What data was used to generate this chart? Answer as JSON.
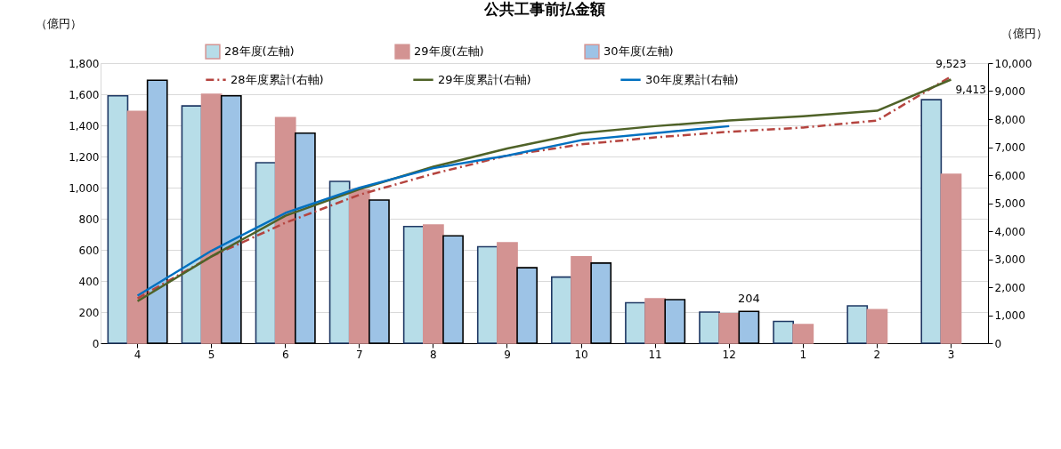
{
  "chart_data": {
    "type": "bar",
    "title": "公共工事前払金額",
    "ylabel": "（億円）",
    "y2label": "（億円）",
    "categories": [
      "4",
      "5",
      "6",
      "7",
      "8",
      "9",
      "10",
      "11",
      "12",
      "1",
      "2",
      "3"
    ],
    "series": [
      {
        "name": "28年度(左軸)",
        "color": "#b7dde8",
        "values": [
          1590,
          1525,
          1160,
          1040,
          750,
          620,
          425,
          260,
          200,
          140,
          240,
          1565
        ]
      },
      {
        "name": "29年度(左軸)",
        "color": "#d39392",
        "values": [
          1490,
          1600,
          1450,
          985,
          760,
          645,
          555,
          285,
          190,
          120,
          215,
          1085
        ]
      },
      {
        "name": "30年度(左軸)",
        "color": "#9dc3e6",
        "values": [
          1690,
          1590,
          1350,
          920,
          690,
          485,
          515,
          280,
          204,
          null,
          null,
          null
        ],
        "value_labels": [
          null,
          null,
          null,
          null,
          null,
          null,
          null,
          null,
          "204",
          null,
          null,
          null
        ]
      },
      {
        "name": "28年度累計(右軸)",
        "type": "line",
        "axis": "y2",
        "line_style": "dashed",
        "color": "#b5443f",
        "values": [
          1600,
          3100,
          4300,
          5300,
          6050,
          6700,
          7100,
          7350,
          7550,
          7700,
          7950,
          9523
        ],
        "value_labels": [
          null,
          null,
          null,
          null,
          null,
          null,
          null,
          null,
          null,
          null,
          null,
          "9,523"
        ]
      },
      {
        "name": "29年度累計(右軸)",
        "type": "line",
        "axis": "y2",
        "line_style": "solid",
        "color": "#4f6228",
        "values": [
          1500,
          3100,
          4550,
          5500,
          6300,
          6950,
          7500,
          7750,
          7950,
          8100,
          8300,
          9413
        ],
        "value_labels": [
          null,
          null,
          null,
          null,
          null,
          null,
          null,
          null,
          null,
          null,
          null,
          "9,413"
        ]
      },
      {
        "name": "30年度累計(右軸)",
        "type": "line",
        "axis": "y2",
        "line_style": "solid",
        "color": "#0070c0",
        "values": [
          1700,
          3300,
          4650,
          5550,
          6250,
          6700,
          7250,
          7500,
          7750,
          null,
          null,
          null
        ]
      }
    ],
    "ylim": [
      0,
      1800
    ],
    "yticks": [
      0,
      200,
      400,
      600,
      800,
      {
        "value": 1000,
        "label": "1,000"
      },
      {
        "value": 1200,
        "label": "1,200"
      },
      {
        "value": 1400,
        "label": "1,400"
      },
      {
        "value": 1600,
        "label": "1,600"
      },
      {
        "value": 1800,
        "label": "1,800"
      }
    ],
    "y2lim": [
      0,
      10000
    ],
    "y2ticks": [
      0,
      {
        "value": 1000,
        "label": "1,000"
      },
      {
        "value": 2000,
        "label": "2,000"
      },
      {
        "value": 3000,
        "label": "3,000"
      },
      {
        "value": 4000,
        "label": "4,000"
      },
      {
        "value": 5000,
        "label": "5,000"
      },
      {
        "value": 6000,
        "label": "6,000"
      },
      {
        "value": 7000,
        "label": "7,000"
      },
      {
        "value": 8000,
        "label": "8,000"
      },
      {
        "value": 9000,
        "label": "9,000"
      },
      {
        "value": 10000,
        "label": "10,000"
      }
    ],
    "grid": "y",
    "legend": "top",
    "marker": "none"
  }
}
